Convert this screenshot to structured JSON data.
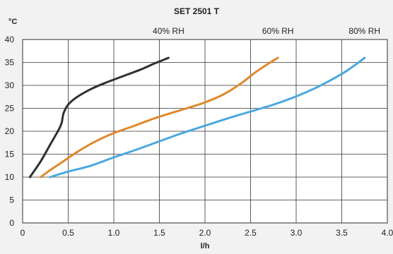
{
  "chart_data": {
    "type": "line",
    "title": "SET 2501 T",
    "xlabel": "l/h",
    "ylabel": "°C",
    "xlim": [
      0,
      4.0
    ],
    "ylim": [
      0,
      40
    ],
    "x_ticks": [
      "0",
      "0.5",
      "1.0",
      "1.5",
      "2.0",
      "2.5",
      "3.0",
      "3.5",
      "4.0"
    ],
    "y_ticks": [
      "0",
      "5",
      "10",
      "15",
      "20",
      "25",
      "30",
      "35",
      "40"
    ],
    "grid": true,
    "colors": {
      "background": "#f2f2f2",
      "plot_area": "#ffffff",
      "grid": "#333333"
    },
    "series": [
      {
        "name": "40% RH",
        "color": "#2f3033",
        "points": [
          [
            0.08,
            10
          ],
          [
            0.2,
            13.5
          ],
          [
            0.3,
            17
          ],
          [
            0.4,
            20.5
          ],
          [
            0.43,
            22
          ],
          [
            0.45,
            24
          ],
          [
            0.5,
            25.8
          ],
          [
            0.6,
            27.5
          ],
          [
            0.75,
            29.2
          ],
          [
            0.9,
            30.5
          ],
          [
            1.1,
            32
          ],
          [
            1.3,
            33.5
          ],
          [
            1.45,
            34.8
          ],
          [
            1.6,
            36
          ]
        ]
      },
      {
        "name": "60% RH",
        "color": "#e0882c",
        "points": [
          [
            0.2,
            10
          ],
          [
            0.3,
            11.5
          ],
          [
            0.45,
            13.5
          ],
          [
            0.6,
            15.5
          ],
          [
            0.8,
            17.8
          ],
          [
            1.0,
            19.6
          ],
          [
            1.2,
            21.0
          ],
          [
            1.4,
            22.5
          ],
          [
            1.6,
            23.8
          ],
          [
            1.8,
            25.0
          ],
          [
            2.0,
            26.3
          ],
          [
            2.2,
            28.0
          ],
          [
            2.4,
            30.5
          ],
          [
            2.55,
            32.8
          ],
          [
            2.7,
            34.8
          ],
          [
            2.8,
            36
          ]
        ]
      },
      {
        "name": "80% RH",
        "color": "#4aa8de",
        "points": [
          [
            0.3,
            10
          ],
          [
            0.5,
            11.2
          ],
          [
            0.75,
            12.5
          ],
          [
            1.0,
            14.3
          ],
          [
            1.25,
            16.0
          ],
          [
            1.5,
            17.8
          ],
          [
            1.75,
            19.6
          ],
          [
            2.0,
            21.2
          ],
          [
            2.25,
            22.8
          ],
          [
            2.5,
            24.3
          ],
          [
            2.75,
            25.8
          ],
          [
            3.0,
            27.6
          ],
          [
            3.25,
            29.8
          ],
          [
            3.5,
            32.5
          ],
          [
            3.65,
            34.5
          ],
          [
            3.75,
            36
          ]
        ]
      }
    ]
  }
}
